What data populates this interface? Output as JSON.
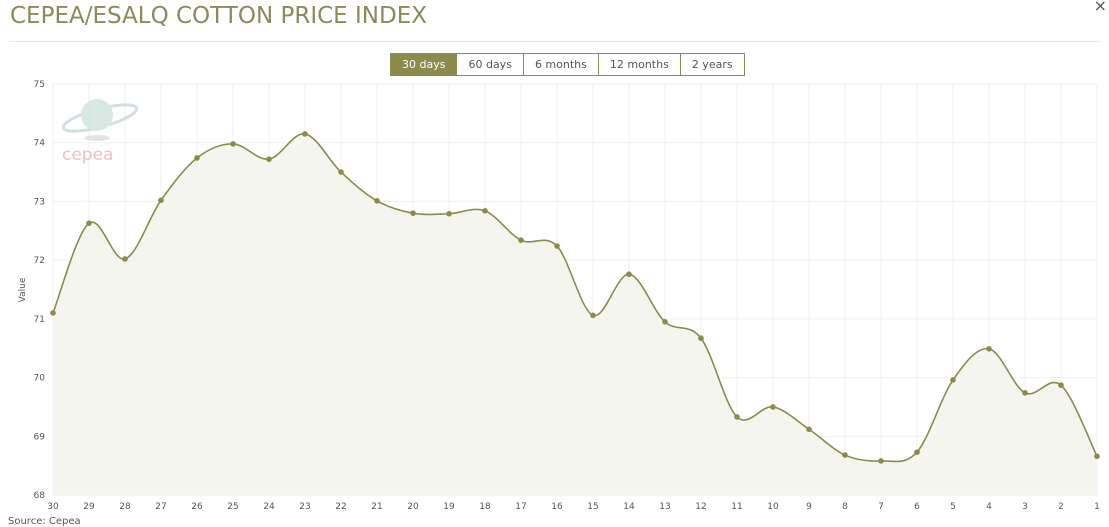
{
  "header": {
    "title": "CEPEA/ESALQ COTTON PRICE INDEX",
    "close": "×"
  },
  "ranges": [
    {
      "label": "30 days",
      "active": true
    },
    {
      "label": "60 days"
    },
    {
      "label": "6 months"
    },
    {
      "label": "12 months"
    },
    {
      "label": "2 years"
    }
  ],
  "logo_text": "cepea",
  "source": "Source: Cepea",
  "chart_data": {
    "type": "area",
    "title": "",
    "xlabel": "",
    "ylabel": "Value",
    "ylim": [
      68,
      75
    ],
    "yticks": [
      68,
      69,
      70,
      71,
      72,
      73,
      74,
      75
    ],
    "grid": true,
    "color": "#8c8a4c",
    "fill": "#f5f5f0",
    "categories": [
      "30",
      "29",
      "28",
      "27",
      "26",
      "25",
      "24",
      "23",
      "22",
      "21",
      "20",
      "19",
      "18",
      "17",
      "16",
      "15",
      "14",
      "13",
      "12",
      "11",
      "10",
      "9",
      "8",
      "7",
      "6",
      "5",
      "4",
      "3",
      "2",
      "1"
    ],
    "values": [
      71.1,
      72.63,
      72.02,
      73.02,
      73.74,
      73.98,
      73.72,
      74.15,
      73.5,
      73.01,
      72.8,
      72.79,
      72.84,
      72.34,
      72.24,
      71.06,
      71.76,
      70.95,
      70.67,
      69.33,
      69.5,
      69.12,
      68.68,
      68.58,
      68.73,
      69.96,
      70.49,
      69.74,
      69.87,
      68.66
    ]
  }
}
